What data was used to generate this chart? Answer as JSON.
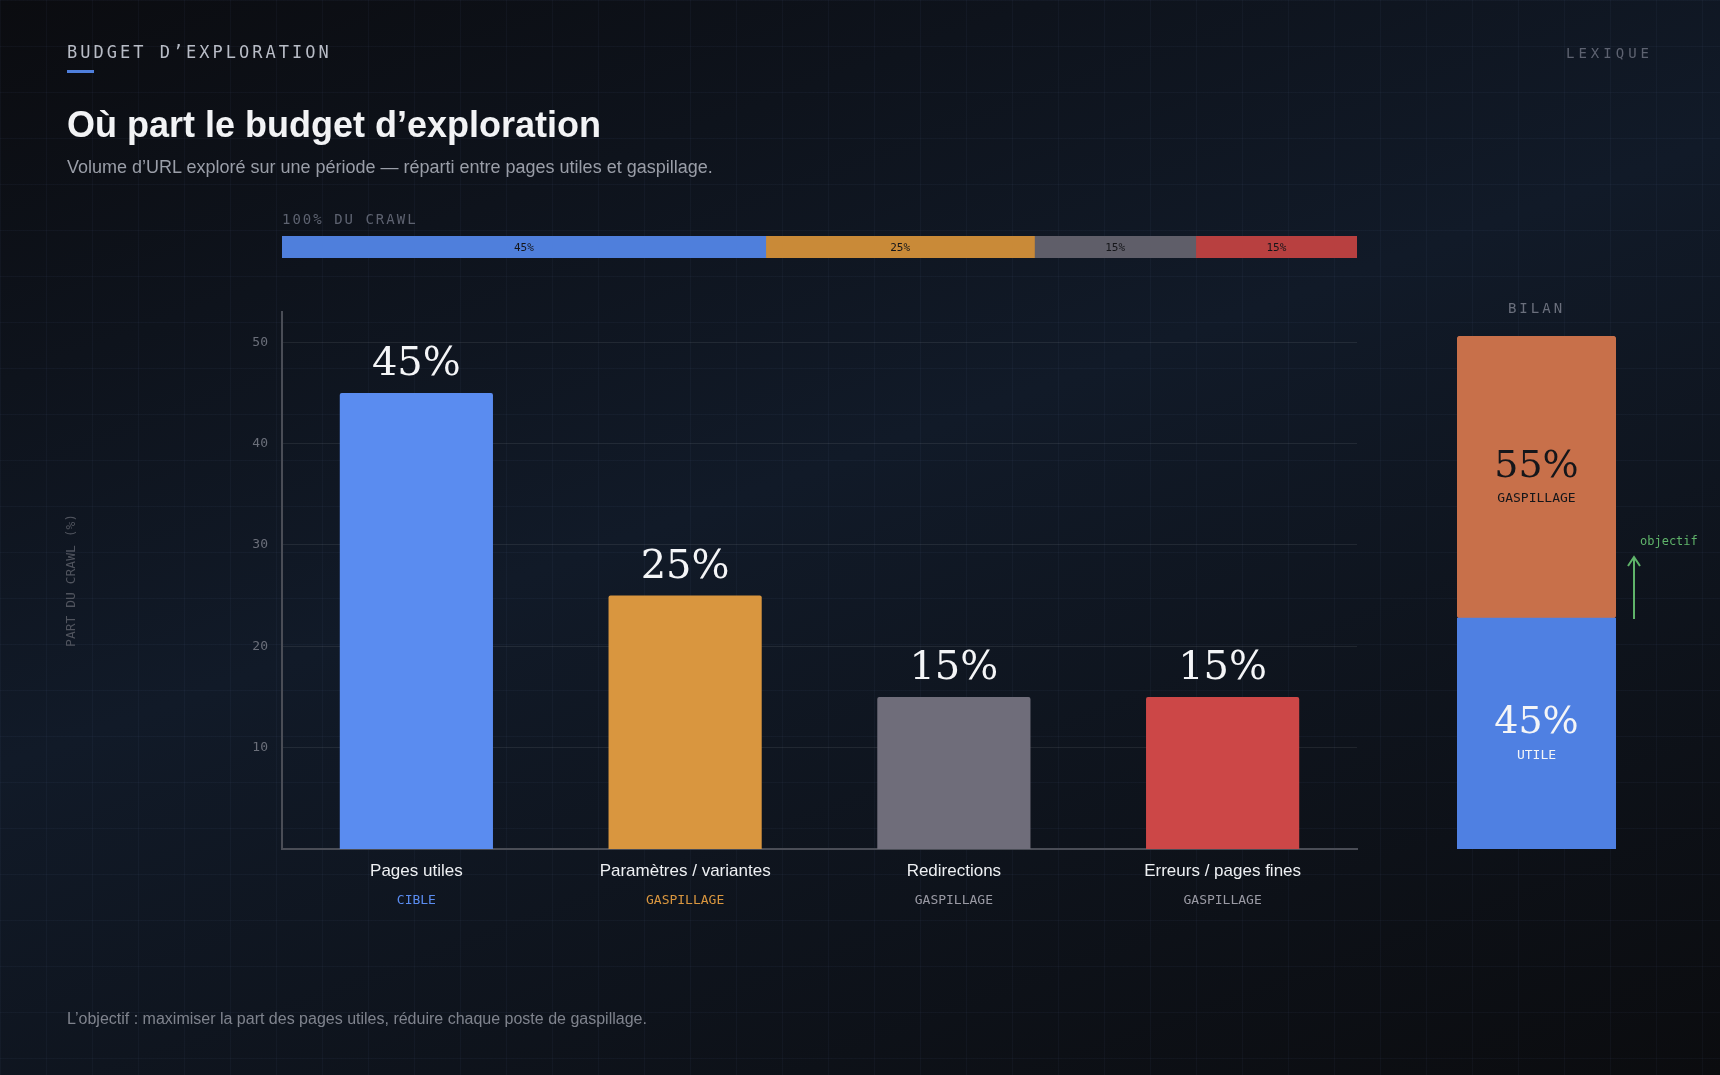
{
  "chart_data": [
    {
      "type": "bar",
      "title": "Où part le budget d’exploration",
      "subtitle": "Volume d’URL exploré sur une période — réparti entre pages utiles et gaspillage.",
      "orientation": "horizontal",
      "stacked": true,
      "categories": [
        null
      ],
      "annotations": [
        "BUDGET D’EXPLORATION",
        "LEXIQUE",
        "100% DU CRAWL"
      ],
      "series": [
        {
          "color": "#4f7fdc",
          "values": [
            45
          ],
          "value_labels": [
            "45%"
          ]
        },
        {
          "color": "#c98a38",
          "values": [
            25
          ],
          "value_labels": [
            "25%"
          ]
        },
        {
          "color": "#5f5e69",
          "values": [
            15
          ],
          "value_labels": [
            "15%"
          ]
        },
        {
          "color": "#b84040",
          "values": [
            15
          ],
          "value_labels": [
            "15%"
          ]
        }
      ]
    },
    {
      "type": "bar",
      "ylabel": "PART DU CRAWL (%)",
      "categories": [
        "Pages utiles",
        "Paramètres / variantes",
        "Redirections",
        "Erreurs / pages fines"
      ],
      "values": [
        45,
        25,
        15,
        15
      ],
      "colors": [
        "#5a8cf0",
        "#d9963f",
        "#6f6d7a",
        "#cc4747"
      ],
      "value_labels": [
        "45%",
        "25%",
        "15%",
        "15%"
      ],
      "ylim": [
        0,
        53
      ],
      "yticks": [
        10,
        20,
        30,
        40,
        50
      ],
      "grid": "y",
      "annotations": [
        "CIBLE",
        "GASPILLAGE",
        "GASPILLAGE",
        "GASPILLAGE",
        "L’objectif : maximiser la part des pages utiles, réduire chaque poste de gaspillage."
      ]
    },
    {
      "type": "bar",
      "title": "BILAN",
      "stacked": true,
      "categories": [
        null
      ],
      "series": [
        {
          "name": "UTILE",
          "color": "#4f80e2",
          "values": [
            45
          ],
          "value_labels": [
            "45%"
          ]
        },
        {
          "name": "GASPILLAGE",
          "color": "#c8704a",
          "values": [
            55
          ],
          "value_labels": [
            "55%"
          ]
        }
      ],
      "annotations": [
        "objectif"
      ]
    }
  ]
}
